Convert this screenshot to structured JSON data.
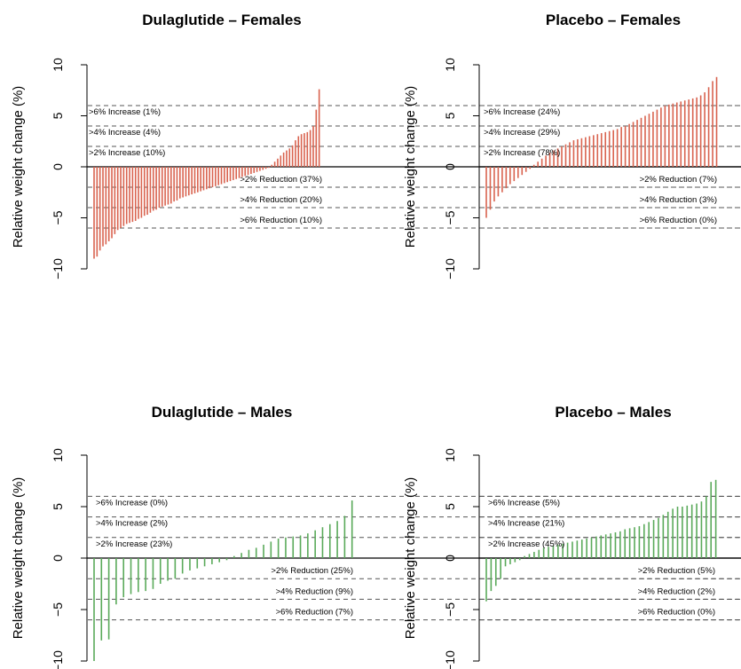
{
  "chart_data": [
    {
      "type": "bar",
      "title": "Dulaglutide – Females",
      "ylabel": "Relative weight change (%)",
      "ylim": [
        -10,
        10
      ],
      "yticks": [
        "10",
        "5",
        "0",
        "−5",
        "−10"
      ],
      "color": "#d9634f",
      "thresholds": [
        6,
        4,
        2,
        -2,
        -4,
        -6
      ],
      "annotations": [
        {
          "level": 6,
          "text": ">6% Increase (1%)"
        },
        {
          "level": 4,
          "text": ">4% Increase (4%)"
        },
        {
          "level": 2,
          "text": ">2% Increase (10%)"
        },
        {
          "level": -2,
          "text": ">2% Reduction (37%)"
        },
        {
          "level": -4,
          "text": ">4% Reduction (20%)"
        },
        {
          "level": -6,
          "text": ">6% Reduction (10%)"
        }
      ],
      "values": [
        -9.0,
        -8.8,
        -8.2,
        -7.8,
        -7.6,
        -7.3,
        -7.0,
        -6.6,
        -6.2,
        -6.0,
        -5.8,
        -5.6,
        -5.5,
        -5.4,
        -5.3,
        -5.1,
        -5.0,
        -4.8,
        -4.7,
        -4.5,
        -4.3,
        -4.2,
        -4.0,
        -3.9,
        -3.8,
        -3.7,
        -3.6,
        -3.4,
        -3.3,
        -3.1,
        -3.0,
        -2.9,
        -2.8,
        -2.7,
        -2.6,
        -2.5,
        -2.4,
        -2.3,
        -2.2,
        -2.1,
        -2.0,
        -1.9,
        -1.8,
        -1.7,
        -1.6,
        -1.5,
        -1.4,
        -1.3,
        -1.2,
        -1.1,
        -1.0,
        -0.9,
        -0.8,
        -0.7,
        -0.6,
        -0.5,
        -0.4,
        -0.3,
        -0.2,
        -0.1,
        0.2,
        0.5,
        0.8,
        1.1,
        1.4,
        1.6,
        1.8,
        2.1,
        2.6,
        3.0,
        3.2,
        3.3,
        3.4,
        3.6,
        4.0,
        5.6,
        7.6
      ]
    },
    {
      "type": "bar",
      "title": "Placebo – Females",
      "ylabel": "Relative weight change (%)",
      "ylim": [
        -10,
        10
      ],
      "yticks": [
        "10",
        "5",
        "0",
        "−5",
        "−10"
      ],
      "color": "#d9634f",
      "thresholds": [
        6,
        4,
        2,
        -2,
        -4,
        -6
      ],
      "annotations": [
        {
          "level": 6,
          "text": ">6% Increase (24%)"
        },
        {
          "level": 4,
          "text": ">4% Increase (29%)"
        },
        {
          "level": 2,
          "text": ">2% Increase (78%)"
        },
        {
          "level": -2,
          "text": ">2% Reduction (7%)"
        },
        {
          "level": -4,
          "text": ">4% Reduction (3%)"
        },
        {
          "level": -6,
          "text": ">6% Reduction (0%)"
        }
      ],
      "values": [
        -5.0,
        -4.2,
        -3.4,
        -2.9,
        -2.5,
        -2.1,
        -1.7,
        -1.4,
        -1.1,
        -0.8,
        -0.5,
        -0.2,
        0.2,
        0.5,
        0.8,
        1.1,
        1.4,
        1.6,
        1.8,
        2.0,
        2.2,
        2.4,
        2.6,
        2.7,
        2.8,
        2.9,
        3.0,
        3.1,
        3.2,
        3.3,
        3.4,
        3.5,
        3.6,
        3.7,
        3.9,
        4.0,
        4.2,
        4.4,
        4.6,
        4.8,
        5.0,
        5.2,
        5.4,
        5.6,
        5.8,
        6.0,
        6.1,
        6.2,
        6.3,
        6.4,
        6.5,
        6.6,
        6.7,
        6.8,
        7.0,
        7.3,
        7.8,
        8.4,
        8.8
      ]
    },
    {
      "type": "bar",
      "title": "Dulaglutide – Males",
      "ylabel": "Relative weight change (%)",
      "ylim": [
        -10,
        10
      ],
      "yticks": [
        "10",
        "5",
        "0",
        "−5",
        "−10"
      ],
      "color": "#5aaa5a",
      "thresholds": [
        6,
        4,
        2,
        -2,
        -4,
        -6
      ],
      "annotations": [
        {
          "level": 6,
          "text": ">6% Increase (0%)"
        },
        {
          "level": 4,
          "text": ">4% Increase (2%)"
        },
        {
          "level": 2,
          "text": ">2% Increase (23%)"
        },
        {
          "level": -2,
          "text": ">2% Reduction (25%)"
        },
        {
          "level": -4,
          "text": ">4% Reduction (9%)"
        },
        {
          "level": -6,
          "text": ">6% Reduction (7%)"
        }
      ],
      "values": [
        -10.0,
        -8.0,
        -7.9,
        -4.5,
        -3.8,
        -3.5,
        -3.3,
        -3.2,
        -3.0,
        -2.5,
        -2.2,
        -2.0,
        -1.5,
        -1.2,
        -1.0,
        -0.8,
        -0.6,
        -0.4,
        -0.2,
        0.2,
        0.5,
        0.8,
        1.0,
        1.3,
        1.6,
        1.9,
        2.0,
        2.1,
        2.2,
        2.4,
        2.7,
        3.0,
        3.3,
        3.6,
        4.1,
        5.6
      ]
    },
    {
      "type": "bar",
      "title": "Placebo – Males",
      "ylabel": "Relative weight change (%)",
      "ylim": [
        -10,
        10
      ],
      "yticks": [
        "10",
        "5",
        "0",
        "−5",
        "−10"
      ],
      "color": "#5aaa5a",
      "thresholds": [
        6,
        4,
        2,
        -2,
        -4,
        -6
      ],
      "annotations": [
        {
          "level": 6,
          "text": ">6% Increase (5%)"
        },
        {
          "level": 4,
          "text": ">4% Increase (21%)"
        },
        {
          "level": 2,
          "text": ">2% Increase (45%)"
        },
        {
          "level": -2,
          "text": ">2% Reduction (5%)"
        },
        {
          "level": -4,
          "text": ">4% Reduction (2%)"
        },
        {
          "level": -6,
          "text": ">6% Reduction (0%)"
        }
      ],
      "values": [
        -4.2,
        -3.2,
        -2.7,
        -2.0,
        -0.8,
        -0.6,
        -0.4,
        -0.2,
        0.2,
        0.4,
        0.6,
        0.8,
        1.0,
        1.1,
        1.2,
        1.3,
        1.4,
        1.5,
        1.6,
        1.7,
        1.8,
        1.9,
        2.0,
        2.1,
        2.2,
        2.3,
        2.4,
        2.5,
        2.6,
        2.8,
        2.9,
        3.0,
        3.1,
        3.3,
        3.5,
        3.7,
        3.9,
        4.2,
        4.5,
        4.8,
        5.0,
        5.0,
        5.1,
        5.2,
        5.3,
        5.5,
        6.0,
        7.4,
        7.6
      ]
    }
  ]
}
